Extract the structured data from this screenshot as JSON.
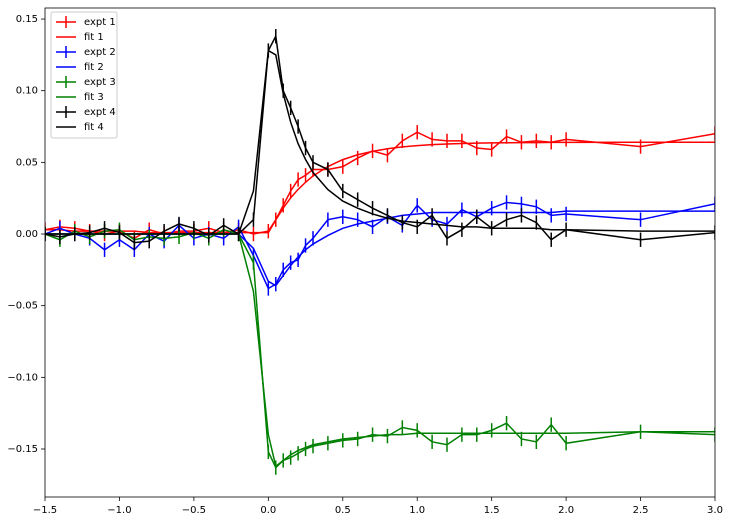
{
  "chart_data": {
    "type": "errorbar-line",
    "x": [
      -1.5,
      -1.4,
      -1.3,
      -1.2,
      -1.1,
      -1.0,
      -0.9,
      -0.8,
      -0.7,
      -0.6,
      -0.5,
      -0.4,
      -0.3,
      -0.2,
      -0.1,
      0.0,
      0.05,
      0.1,
      0.15,
      0.2,
      0.25,
      0.3,
      0.4,
      0.5,
      0.6,
      0.7,
      0.8,
      0.9,
      1.0,
      1.1,
      1.2,
      1.3,
      1.4,
      1.5,
      1.6,
      1.7,
      1.8,
      1.9,
      2.0,
      2.5,
      3.0
    ],
    "series": [
      {
        "name": "expt 1",
        "color": "#ff0000",
        "error": 0.005,
        "values": [
          0.003,
          0.005,
          0.004,
          0.002,
          0.0,
          0.002,
          -0.003,
          0.003,
          0.0,
          0.002,
          0.002,
          0.004,
          0.001,
          0.003,
          0.0,
          0.002,
          0.01,
          0.02,
          0.03,
          0.038,
          0.041,
          0.045,
          0.045,
          0.047,
          0.053,
          0.058,
          0.055,
          0.065,
          0.071,
          0.066,
          0.065,
          0.065,
          0.06,
          0.059,
          0.068,
          0.064,
          0.065,
          0.064,
          0.066,
          0.061,
          0.07
        ]
      },
      {
        "name": "fit 1",
        "color": "#ff0000",
        "values": [
          0.003,
          0.003,
          0.002,
          0.002,
          0.002,
          0.002,
          0.002,
          0.001,
          0.001,
          0.001,
          0.001,
          0.001,
          0.001,
          0.001,
          0.001,
          0.001,
          0.0098,
          0.0181,
          0.0252,
          0.0311,
          0.0361,
          0.0405,
          0.0471,
          0.0519,
          0.0553,
          0.0577,
          0.0595,
          0.0608,
          0.0617,
          0.0624,
          0.0628,
          0.0632,
          0.0634,
          0.0636,
          0.0637,
          0.0638,
          0.0638,
          0.0639,
          0.0639,
          0.064,
          0.064
        ]
      },
      {
        "name": "expt 2",
        "color": "#0000ff",
        "error": 0.005,
        "values": [
          0.0,
          0.004,
          0.0,
          -0.003,
          -0.011,
          -0.004,
          -0.011,
          0.0,
          -0.005,
          0.006,
          -0.003,
          0.0,
          -0.003,
          0.005,
          -0.015,
          -0.038,
          -0.035,
          -0.025,
          -0.02,
          -0.018,
          -0.008,
          -0.003,
          0.01,
          0.012,
          0.01,
          0.005,
          0.012,
          0.006,
          0.02,
          0.01,
          0.007,
          0.017,
          0.012,
          0.018,
          0.022,
          0.021,
          0.019,
          0.013,
          0.014,
          0.01,
          0.021
        ]
      },
      {
        "name": "fit 2",
        "color": "#0000ff",
        "values": [
          0,
          0,
          0,
          0,
          0,
          0,
          0,
          0,
          0,
          0,
          0,
          0,
          0,
          0,
          -0.01,
          -0.033,
          -0.036,
          -0.029,
          -0.022,
          -0.016,
          -0.011,
          -0.007,
          -0.001,
          0.004,
          0.007,
          0.009,
          0.011,
          0.013,
          0.014,
          0.015,
          0.015,
          0.015,
          0.015,
          0.015,
          0.015,
          0.015,
          0.015,
          0.015,
          0.016,
          0.016,
          0.016
        ]
      },
      {
        "name": "expt 3",
        "color": "#008000",
        "error": 0.005,
        "values": [
          0.0,
          -0.004,
          0.002,
          -0.002,
          0.002,
          0.003,
          -0.004,
          -0.002,
          -0.003,
          -0.002,
          0.001,
          -0.003,
          0.003,
          0.0,
          -0.02,
          -0.152,
          -0.163,
          -0.158,
          -0.156,
          -0.153,
          -0.15,
          -0.148,
          -0.146,
          -0.144,
          -0.143,
          -0.14,
          -0.141,
          -0.135,
          -0.137,
          -0.145,
          -0.147,
          -0.14,
          -0.14,
          -0.137,
          -0.132,
          -0.143,
          -0.145,
          -0.133,
          -0.146,
          -0.138,
          -0.14
        ]
      },
      {
        "name": "fit 3",
        "color": "#008000",
        "values": [
          0,
          0,
          0,
          0,
          0,
          0,
          0,
          0,
          0,
          0,
          0,
          0,
          0,
          0,
          -0.04,
          -0.14,
          -0.162,
          -0.158,
          -0.154,
          -0.151,
          -0.149,
          -0.147,
          -0.145,
          -0.143,
          -0.142,
          -0.141,
          -0.14,
          -0.14,
          -0.139,
          -0.139,
          -0.139,
          -0.139,
          -0.139,
          -0.139,
          -0.139,
          -0.139,
          -0.139,
          -0.139,
          -0.139,
          -0.138,
          -0.138
        ]
      },
      {
        "name": "expt 4",
        "color": "#000000",
        "error": 0.005,
        "values": [
          0.0,
          -0.002,
          0.0,
          0.001,
          0.004,
          0.001,
          -0.006,
          -0.005,
          0.002,
          0.007,
          0.004,
          -0.001,
          0.006,
          0.0,
          0.01,
          0.128,
          0.138,
          0.1,
          0.088,
          0.075,
          0.06,
          0.05,
          0.045,
          0.03,
          0.024,
          0.018,
          0.013,
          0.008,
          0.005,
          0.013,
          -0.003,
          0.003,
          0.012,
          0.004,
          0.01,
          0.013,
          0.008,
          -0.004,
          0.003,
          -0.004,
          0.001
        ]
      },
      {
        "name": "fit 4",
        "color": "#000000",
        "values": [
          0,
          0,
          0,
          0,
          0,
          0,
          0,
          0,
          0,
          0,
          0,
          0,
          0,
          0,
          0.03,
          0.128,
          0.125,
          0.098,
          0.078,
          0.063,
          0.052,
          0.043,
          0.031,
          0.023,
          0.018,
          0.014,
          0.011,
          0.009,
          0.008,
          0.007,
          0.006,
          0.005,
          0.005,
          0.004,
          0.004,
          0.004,
          0.004,
          0.003,
          0.003,
          0.002,
          0.002
        ]
      }
    ],
    "xlim": [
      -1.5,
      3.0
    ],
    "ylim": [
      -0.1835,
      0.1577
    ],
    "xticks": [
      {
        "value": -1.5,
        "label": "−1.5"
      },
      {
        "value": -1.0,
        "label": "−1.0"
      },
      {
        "value": -0.5,
        "label": "−0.5"
      },
      {
        "value": 0.0,
        "label": "0.0"
      },
      0.5,
      {
        "value": 1.0,
        "label": "1.0"
      },
      1.5,
      {
        "value": 2.0,
        "label": "2.0"
      },
      2.5,
      {
        "value": 3.0,
        "label": "3.0"
      }
    ],
    "yticks": [
      {
        "value": -0.15,
        "label": "−0.15"
      },
      {
        "value": -0.1,
        "label": "−0.10"
      },
      {
        "value": -0.05,
        "label": "−0.05"
      },
      {
        "value": 0.0,
        "label": "0.00"
      },
      0.05,
      {
        "value": 0.1,
        "label": "0.10"
      },
      0.15
    ],
    "grid": false,
    "legend": "upper left"
  }
}
